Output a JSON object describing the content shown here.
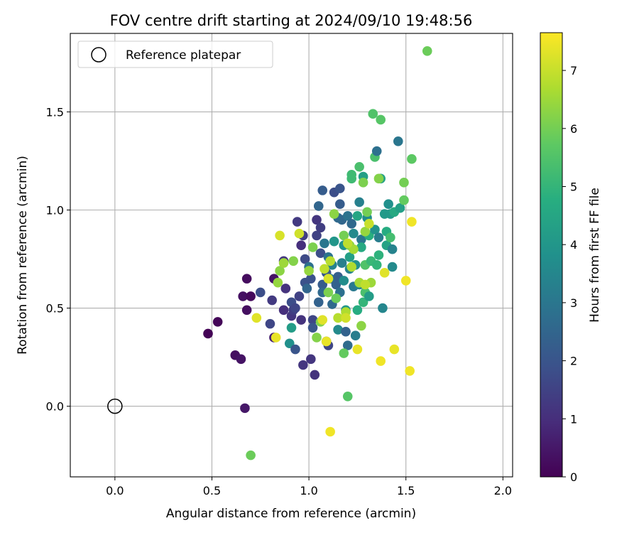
{
  "chart_data": {
    "type": "scatter",
    "title": "FOV centre drift starting at 2024/09/10 19:48:56",
    "xlabel": "Angular distance from reference (arcmin)",
    "ylabel": "Rotation from reference (arcmin)",
    "xlim": [
      -0.23,
      2.05
    ],
    "ylim": [
      -0.36,
      1.9
    ],
    "xticks": [
      0.0,
      0.5,
      1.0,
      1.5,
      2.0
    ],
    "xtick_labels": [
      "0.0",
      "0.5",
      "1.0",
      "1.5",
      "2.0"
    ],
    "yticks": [
      0.0,
      0.5,
      1.0,
      1.5
    ],
    "ytick_labels": [
      "0.0",
      "0.5",
      "1.0",
      "1.5"
    ],
    "grid": true,
    "legend": {
      "placement": "top-left",
      "entries": [
        "Reference platepar"
      ]
    },
    "reference_point": {
      "x": 0.0,
      "y": 0.0,
      "marker": "open-circle"
    },
    "colorbar": {
      "label": "Hours from first FF file",
      "colormap": "viridis",
      "range": [
        0,
        7.65
      ],
      "ticks": [
        0,
        1,
        2,
        3,
        4,
        5,
        6,
        7
      ],
      "tick_labels": [
        "0",
        "1",
        "2",
        "3",
        "4",
        "5",
        "6",
        "7"
      ]
    },
    "points": [
      {
        "x": 0.48,
        "y": 0.37,
        "h": 0.05
      },
      {
        "x": 0.53,
        "y": 0.43,
        "h": 0.1
      },
      {
        "x": 0.62,
        "y": 0.26,
        "h": 0.3
      },
      {
        "x": 0.65,
        "y": 0.24,
        "h": 0.4
      },
      {
        "x": 0.67,
        "y": -0.01,
        "h": 0.5
      },
      {
        "x": 0.66,
        "y": 0.56,
        "h": 0.35
      },
      {
        "x": 0.68,
        "y": 0.49,
        "h": 0.3
      },
      {
        "x": 0.68,
        "y": 0.65,
        "h": 0.25
      },
      {
        "x": 0.7,
        "y": 0.56,
        "h": 0.2
      },
      {
        "x": 0.75,
        "y": 0.58,
        "h": 1.8
      },
      {
        "x": 0.8,
        "y": 0.42,
        "h": 1.6
      },
      {
        "x": 0.81,
        "y": 0.54,
        "h": 1.3
      },
      {
        "x": 0.82,
        "y": 0.65,
        "h": 0.4
      },
      {
        "x": 0.82,
        "y": 0.35,
        "h": 0.7
      },
      {
        "x": 0.87,
        "y": 0.49,
        "h": 1.0
      },
      {
        "x": 0.87,
        "y": 0.74,
        "h": 1.2
      },
      {
        "x": 0.88,
        "y": 0.6,
        "h": 1.1
      },
      {
        "x": 0.9,
        "y": 0.32,
        "h": 3.8
      },
      {
        "x": 0.91,
        "y": 0.4,
        "h": 4.2
      },
      {
        "x": 0.91,
        "y": 0.53,
        "h": 1.8
      },
      {
        "x": 0.91,
        "y": 0.46,
        "h": 1.2
      },
      {
        "x": 0.92,
        "y": 0.49,
        "h": 1.4
      },
      {
        "x": 0.93,
        "y": 0.5,
        "h": 1.6
      },
      {
        "x": 0.93,
        "y": 0.29,
        "h": 2.0
      },
      {
        "x": 0.94,
        "y": 0.94,
        "h": 1.3
      },
      {
        "x": 0.95,
        "y": 0.56,
        "h": 1.5
      },
      {
        "x": 0.96,
        "y": 0.44,
        "h": 1.1
      },
      {
        "x": 0.96,
        "y": 0.82,
        "h": 1.0
      },
      {
        "x": 0.97,
        "y": 0.21,
        "h": 1.2
      },
      {
        "x": 0.97,
        "y": 0.87,
        "h": 1.4
      },
      {
        "x": 0.98,
        "y": 0.75,
        "h": 1.7
      },
      {
        "x": 0.98,
        "y": 0.63,
        "h": 1.9
      },
      {
        "x": 0.99,
        "y": 0.6,
        "h": 2.5
      },
      {
        "x": 1.0,
        "y": 0.71,
        "h": 2.8
      },
      {
        "x": 1.01,
        "y": 0.65,
        "h": 1.9
      },
      {
        "x": 1.01,
        "y": 0.24,
        "h": 1.2
      },
      {
        "x": 1.02,
        "y": 0.44,
        "h": 1.6
      },
      {
        "x": 1.02,
        "y": 0.4,
        "h": 2.0
      },
      {
        "x": 1.03,
        "y": 0.16,
        "h": 1.1
      },
      {
        "x": 1.04,
        "y": 0.95,
        "h": 1.2
      },
      {
        "x": 1.04,
        "y": 0.87,
        "h": 1.5
      },
      {
        "x": 1.05,
        "y": 1.02,
        "h": 2.5
      },
      {
        "x": 1.05,
        "y": 0.53,
        "h": 2.4
      },
      {
        "x": 1.06,
        "y": 0.78,
        "h": 1.8
      },
      {
        "x": 1.06,
        "y": 0.91,
        "h": 1.4
      },
      {
        "x": 1.07,
        "y": 0.62,
        "h": 2.2
      },
      {
        "x": 1.07,
        "y": 0.58,
        "h": 2.6
      },
      {
        "x": 1.08,
        "y": 0.83,
        "h": 3.0
      },
      {
        "x": 1.09,
        "y": 0.68,
        "h": 2.1
      },
      {
        "x": 1.09,
        "y": 0.33,
        "h": 2.0
      },
      {
        "x": 1.1,
        "y": 0.31,
        "h": 1.6
      },
      {
        "x": 1.1,
        "y": 0.76,
        "h": 2.9
      },
      {
        "x": 1.11,
        "y": 0.65,
        "h": 3.2
      },
      {
        "x": 1.12,
        "y": 0.52,
        "h": 2.6
      },
      {
        "x": 1.12,
        "y": 0.72,
        "h": 3.4
      },
      {
        "x": 1.13,
        "y": 1.09,
        "h": 1.8
      },
      {
        "x": 1.13,
        "y": 0.84,
        "h": 4.0
      },
      {
        "x": 1.14,
        "y": 0.62,
        "h": 2.4
      },
      {
        "x": 1.15,
        "y": 0.39,
        "h": 3.6
      },
      {
        "x": 1.15,
        "y": 0.66,
        "h": 2.3
      },
      {
        "x": 1.16,
        "y": 1.03,
        "h": 2.2
      },
      {
        "x": 1.16,
        "y": 0.58,
        "h": 2.8
      },
      {
        "x": 1.16,
        "y": 1.11,
        "h": 2.0
      },
      {
        "x": 1.17,
        "y": 0.73,
        "h": 3.3
      },
      {
        "x": 1.17,
        "y": 0.95,
        "h": 2.5
      },
      {
        "x": 1.18,
        "y": 0.64,
        "h": 3.7
      },
      {
        "x": 1.18,
        "y": 0.82,
        "h": 3.9
      },
      {
        "x": 1.19,
        "y": 0.38,
        "h": 2.4
      },
      {
        "x": 1.19,
        "y": 0.49,
        "h": 4.0
      },
      {
        "x": 1.2,
        "y": 0.31,
        "h": 2.7
      },
      {
        "x": 1.2,
        "y": 0.97,
        "h": 2.9
      },
      {
        "x": 1.21,
        "y": 0.7,
        "h": 3.4
      },
      {
        "x": 1.21,
        "y": 0.76,
        "h": 4.3
      },
      {
        "x": 1.22,
        "y": 1.16,
        "h": 5.2
      },
      {
        "x": 1.22,
        "y": 0.93,
        "h": 2.6
      },
      {
        "x": 1.23,
        "y": 0.61,
        "h": 3.1
      },
      {
        "x": 1.23,
        "y": 0.88,
        "h": 3.6
      },
      {
        "x": 1.24,
        "y": 0.36,
        "h": 3.2
      },
      {
        "x": 1.24,
        "y": 0.72,
        "h": 3.9
      },
      {
        "x": 1.25,
        "y": 0.97,
        "h": 4.5
      },
      {
        "x": 1.25,
        "y": 0.49,
        "h": 4.7
      },
      {
        "x": 1.26,
        "y": 0.62,
        "h": 3.5
      },
      {
        "x": 1.26,
        "y": 1.04,
        "h": 3.3
      },
      {
        "x": 1.27,
        "y": 0.85,
        "h": 3.0
      },
      {
        "x": 1.27,
        "y": 0.81,
        "h": 4.6
      },
      {
        "x": 1.28,
        "y": 0.53,
        "h": 5.0
      },
      {
        "x": 1.28,
        "y": 1.17,
        "h": 4.3
      },
      {
        "x": 1.29,
        "y": 0.72,
        "h": 5.5
      },
      {
        "x": 1.29,
        "y": 0.58,
        "h": 5.4
      },
      {
        "x": 1.3,
        "y": 0.96,
        "h": 3.7
      },
      {
        "x": 1.31,
        "y": 0.87,
        "h": 4.8
      },
      {
        "x": 1.31,
        "y": 0.56,
        "h": 4.2
      },
      {
        "x": 1.32,
        "y": 0.74,
        "h": 5.1
      },
      {
        "x": 1.33,
        "y": 1.49,
        "h": 5.5
      },
      {
        "x": 1.34,
        "y": 0.9,
        "h": 3.9
      },
      {
        "x": 1.34,
        "y": 1.27,
        "h": 5.4
      },
      {
        "x": 1.35,
        "y": 1.3,
        "h": 2.8
      },
      {
        "x": 1.35,
        "y": 0.72,
        "h": 5.0
      },
      {
        "x": 1.36,
        "y": 0.77,
        "h": 4.9
      },
      {
        "x": 1.36,
        "y": 0.86,
        "h": 3.2
      },
      {
        "x": 1.37,
        "y": 1.46,
        "h": 5.6
      },
      {
        "x": 1.37,
        "y": 1.16,
        "h": 4.4
      },
      {
        "x": 1.38,
        "y": 0.5,
        "h": 3.5
      },
      {
        "x": 1.39,
        "y": 0.98,
        "h": 4.1
      },
      {
        "x": 1.4,
        "y": 0.89,
        "h": 4.7
      },
      {
        "x": 1.4,
        "y": 0.82,
        "h": 4.4
      },
      {
        "x": 1.41,
        "y": 1.03,
        "h": 3.8
      },
      {
        "x": 1.42,
        "y": 0.98,
        "h": 4.1
      },
      {
        "x": 1.42,
        "y": 0.86,
        "h": 5.3
      },
      {
        "x": 1.43,
        "y": 0.71,
        "h": 3.6
      },
      {
        "x": 1.43,
        "y": 0.8,
        "h": 3.4
      },
      {
        "x": 1.44,
        "y": 0.99,
        "h": 4.6
      },
      {
        "x": 1.46,
        "y": 1.35,
        "h": 3.0
      },
      {
        "x": 1.47,
        "y": 1.01,
        "h": 4.3
      },
      {
        "x": 1.49,
        "y": 1.05,
        "h": 5.8
      },
      {
        "x": 1.49,
        "y": 1.14,
        "h": 6.0
      },
      {
        "x": 1.53,
        "y": 1.26,
        "h": 5.7
      },
      {
        "x": 1.61,
        "y": 1.81,
        "h": 5.9
      },
      {
        "x": 1.07,
        "y": 1.1,
        "h": 2.2
      },
      {
        "x": 1.15,
        "y": 0.96,
        "h": 2.6
      },
      {
        "x": 1.22,
        "y": 1.18,
        "h": 5.2
      },
      {
        "x": 1.26,
        "y": 1.22,
        "h": 5.4
      },
      {
        "x": 1.2,
        "y": 0.05,
        "h": 5.6
      },
      {
        "x": 1.18,
        "y": 0.27,
        "h": 5.8
      },
      {
        "x": 1.14,
        "y": 0.55,
        "h": 5.9
      },
      {
        "x": 1.1,
        "y": 0.58,
        "h": 6.1
      },
      {
        "x": 1.06,
        "y": 0.43,
        "h": 6.2
      },
      {
        "x": 1.04,
        "y": 0.35,
        "h": 6.2
      },
      {
        "x": 1.0,
        "y": 0.69,
        "h": 6.4
      },
      {
        "x": 1.02,
        "y": 0.81,
        "h": 6.1
      },
      {
        "x": 0.92,
        "y": 0.74,
        "h": 6.2
      },
      {
        "x": 0.85,
        "y": 0.69,
        "h": 6.3
      },
      {
        "x": 0.84,
        "y": 0.63,
        "h": 6.4
      },
      {
        "x": 0.87,
        "y": 0.73,
        "h": 6.5
      },
      {
        "x": 0.7,
        "y": -0.25,
        "h": 5.9
      },
      {
        "x": 1.13,
        "y": 0.98,
        "h": 6.3
      },
      {
        "x": 1.18,
        "y": 0.87,
        "h": 6.0
      },
      {
        "x": 1.21,
        "y": 0.82,
        "h": 6.2
      },
      {
        "x": 1.23,
        "y": 0.8,
        "h": 6.6
      },
      {
        "x": 1.27,
        "y": 0.41,
        "h": 6.3
      },
      {
        "x": 1.29,
        "y": 0.89,
        "h": 6.4
      },
      {
        "x": 1.32,
        "y": 0.63,
        "h": 6.5
      },
      {
        "x": 1.36,
        "y": 1.16,
        "h": 6.2
      },
      {
        "x": 1.3,
        "y": 0.99,
        "h": 6.0
      },
      {
        "x": 1.28,
        "y": 1.14,
        "h": 6.1
      },
      {
        "x": 1.26,
        "y": 0.63,
        "h": 6.6
      },
      {
        "x": 1.19,
        "y": 0.48,
        "h": 6.7
      },
      {
        "x": 1.15,
        "y": 0.45,
        "h": 6.8
      },
      {
        "x": 1.08,
        "y": 0.7,
        "h": 6.9
      },
      {
        "x": 1.11,
        "y": 0.74,
        "h": 6.8
      },
      {
        "x": 1.22,
        "y": 0.71,
        "h": 6.7
      },
      {
        "x": 1.2,
        "y": 0.83,
        "h": 6.9
      },
      {
        "x": 1.31,
        "y": 0.93,
        "h": 7.0
      },
      {
        "x": 1.29,
        "y": 0.62,
        "h": 6.9
      },
      {
        "x": 0.85,
        "y": 0.87,
        "h": 7.2
      },
      {
        "x": 0.95,
        "y": 0.88,
        "h": 7.1
      },
      {
        "x": 0.73,
        "y": 0.45,
        "h": 7.3
      },
      {
        "x": 0.83,
        "y": 0.35,
        "h": 7.4
      },
      {
        "x": 1.07,
        "y": 0.44,
        "h": 7.3
      },
      {
        "x": 1.1,
        "y": 0.65,
        "h": 7.2
      },
      {
        "x": 1.11,
        "y": -0.13,
        "h": 7.5
      },
      {
        "x": 1.09,
        "y": 0.33,
        "h": 7.4
      },
      {
        "x": 1.19,
        "y": 0.45,
        "h": 7.1
      },
      {
        "x": 1.25,
        "y": 0.29,
        "h": 7.4
      },
      {
        "x": 1.37,
        "y": 0.23,
        "h": 7.5
      },
      {
        "x": 1.39,
        "y": 0.68,
        "h": 7.3
      },
      {
        "x": 1.44,
        "y": 0.29,
        "h": 7.4
      },
      {
        "x": 1.5,
        "y": 0.64,
        "h": 7.5
      },
      {
        "x": 1.52,
        "y": 0.18,
        "h": 7.5
      },
      {
        "x": 1.53,
        "y": 0.94,
        "h": 7.5
      }
    ]
  }
}
